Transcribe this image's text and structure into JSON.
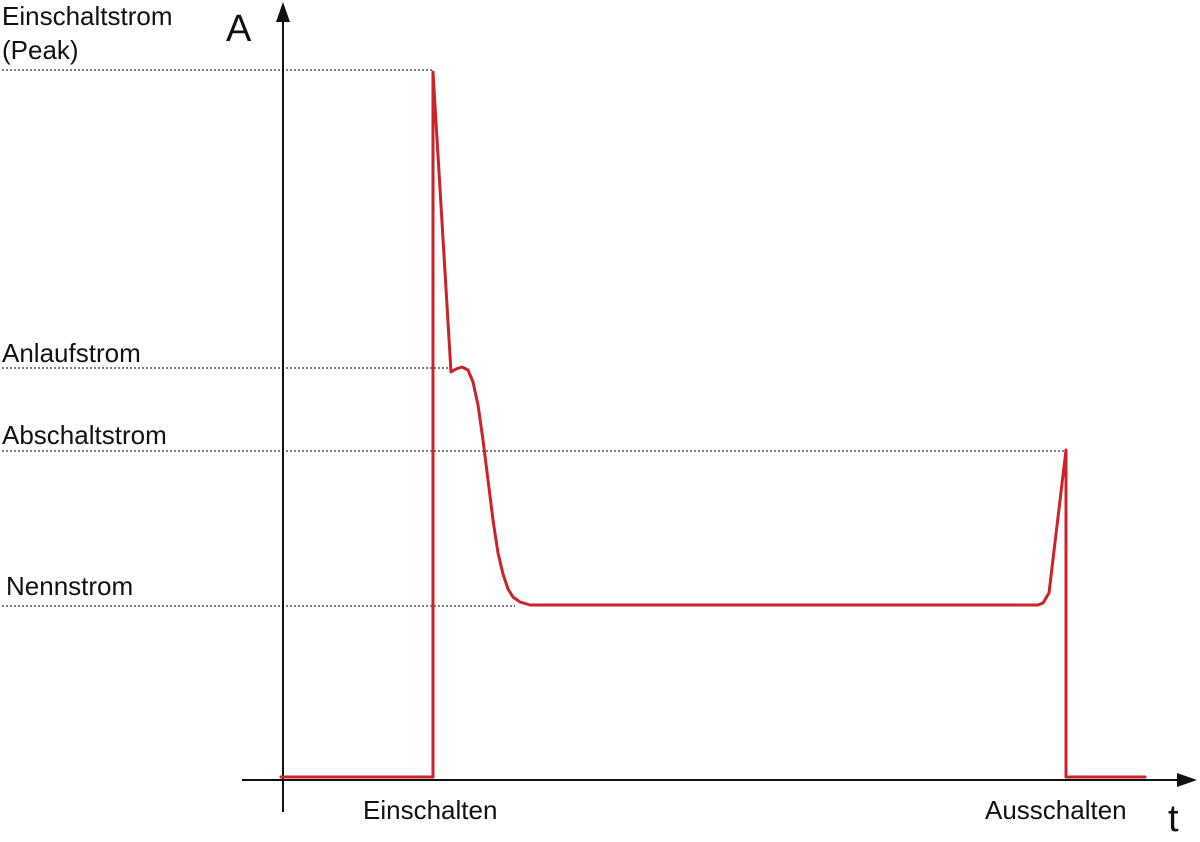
{
  "diagram": {
    "y_axis_label": "A",
    "x_axis_label": "t",
    "levels": {
      "peak_line1": "Einschaltstrom",
      "peak_line2": "(Peak)",
      "startup": "Anlaufstrom",
      "cutoff": "Abschaltstrom",
      "nominal": "Nennstrom"
    },
    "events": {
      "switch_on": "Einschalten",
      "switch_off": "Ausschalten"
    },
    "colors": {
      "curve": "#cc2229",
      "axes": "#111111",
      "guides": "#333333"
    }
  }
}
